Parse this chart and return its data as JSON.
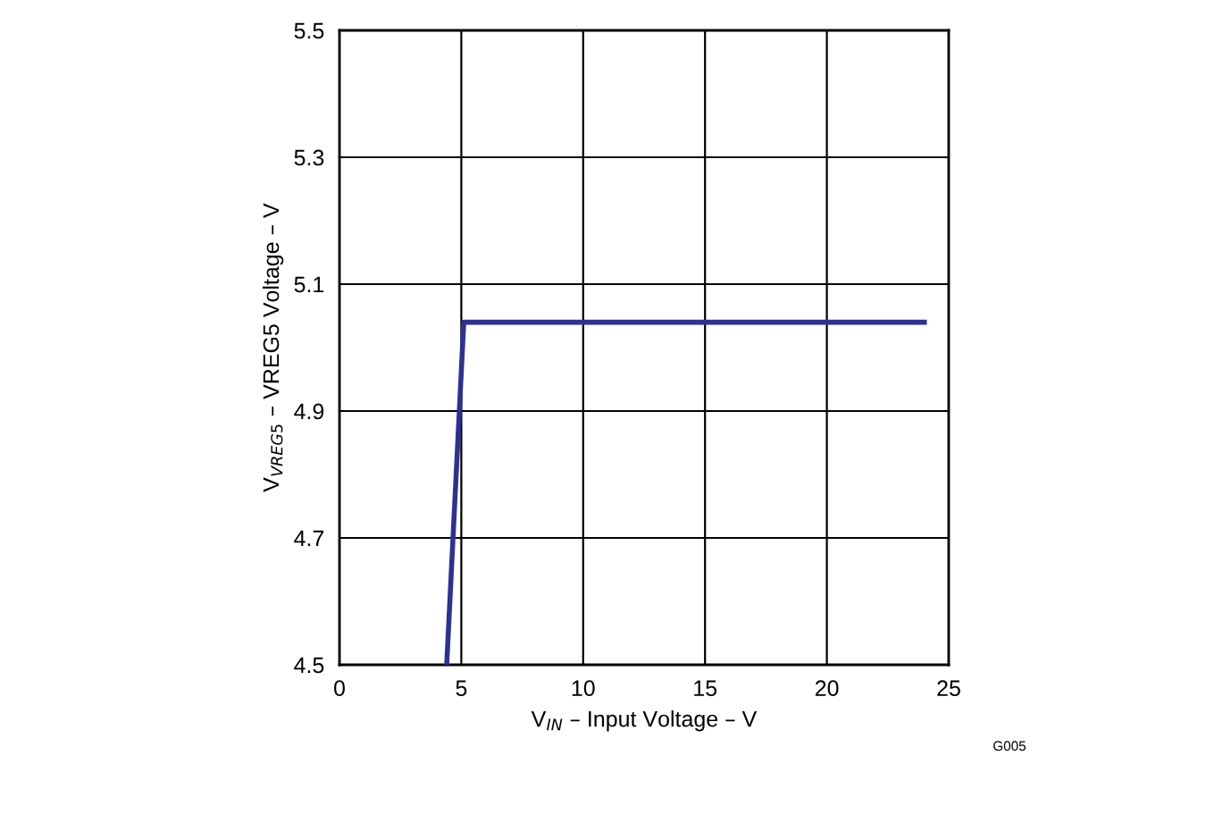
{
  "chart_data": {
    "type": "line",
    "xlabel": "V$_{IN}$ – Input Voltage – V",
    "ylabel": "V$_{VREG5}$ – VREG5 Voltage – V",
    "annotations": [
      "G005"
    ],
    "series": [
      {
        "color": "#2e3192",
        "x": [
          4.4,
          5.1,
          24.0
        ],
        "values": [
          4.5,
          5.04,
          5.04
        ]
      }
    ],
    "xlim": [
      0,
      25
    ],
    "xticks": [
      0,
      5,
      10,
      15,
      20,
      25
    ],
    "ylim": [
      4.5,
      5.5
    ],
    "yticks": [
      4.5,
      4.7,
      4.9,
      5.1,
      5.3,
      5.5
    ],
    "grid": true,
    "legend": false
  }
}
